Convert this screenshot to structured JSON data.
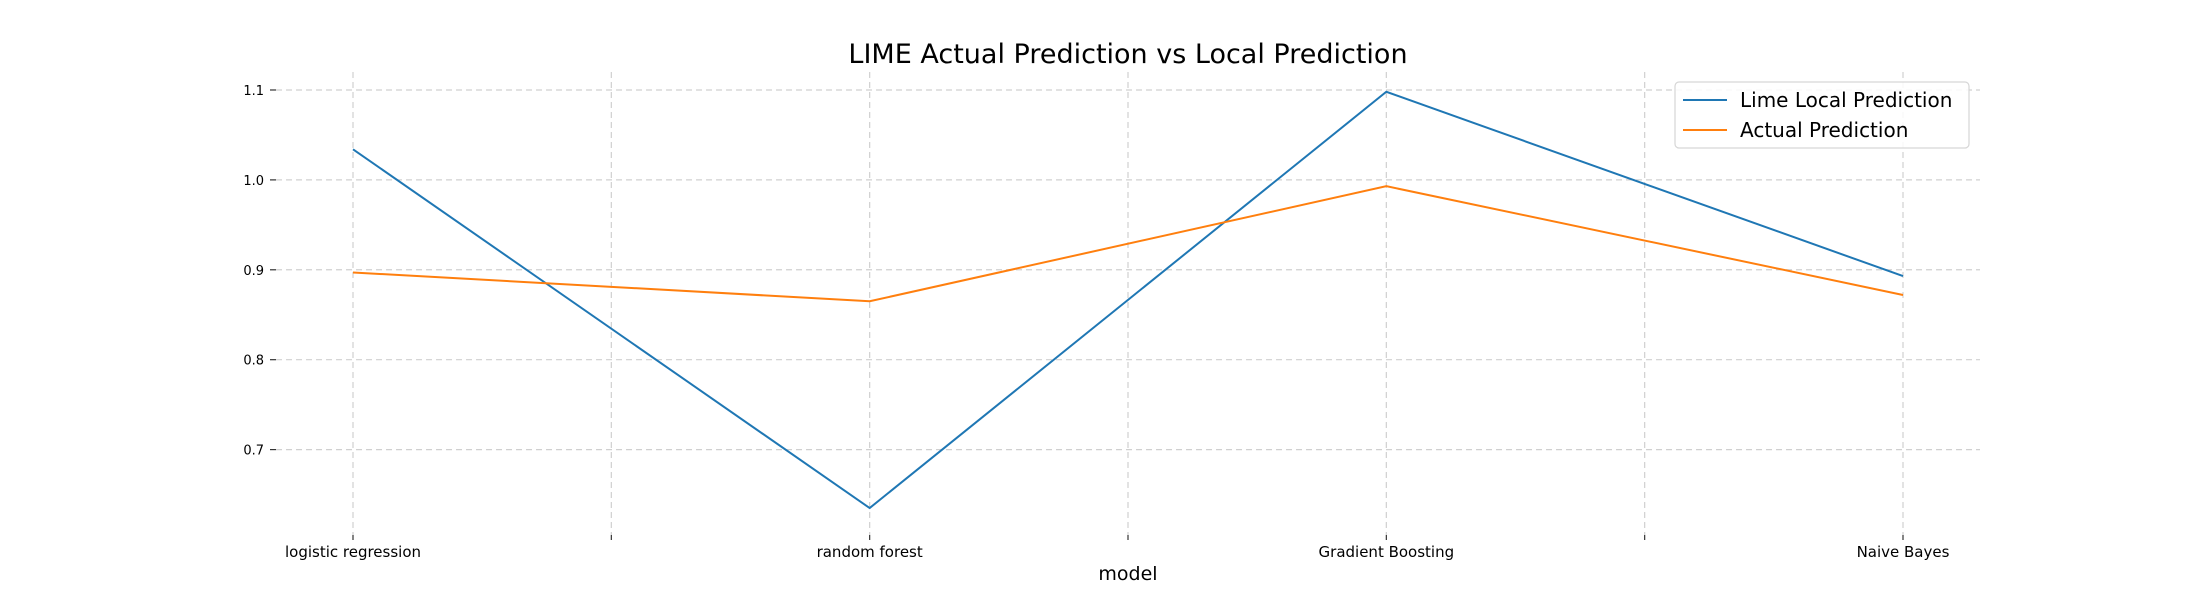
{
  "chart_data": {
    "type": "line",
    "title": "LIME Actual Prediction vs Local Prediction",
    "xlabel": "model",
    "ylabel": "",
    "categories": [
      "logistic regression",
      "random forest",
      "Gradient Boosting",
      "Naive Bayes"
    ],
    "series": [
      {
        "name": "Lime Local Prediction",
        "color": "#1f77b4",
        "values": [
          1.034,
          0.635,
          1.098,
          0.893
        ]
      },
      {
        "name": "Actual Prediction",
        "color": "#ff7f0e",
        "values": [
          0.897,
          0.865,
          0.993,
          0.872
        ]
      }
    ],
    "yticks": [
      0.7,
      0.8,
      0.9,
      1.0,
      1.1
    ],
    "ytick_labels": [
      "0.7",
      "0.8",
      "0.9",
      "1.0",
      "1.1"
    ],
    "ylim": [
      0.605,
      1.12
    ],
    "grid": true,
    "legend_position": "top-right"
  }
}
